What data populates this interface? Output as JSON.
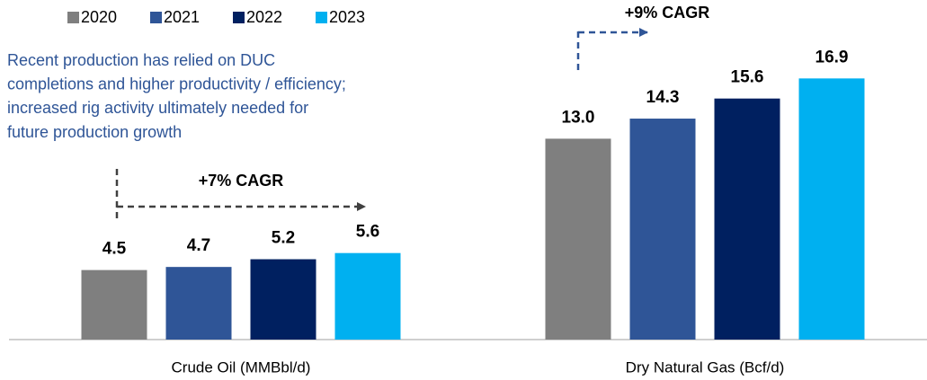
{
  "chart_data": {
    "type": "bar",
    "categories": [
      "Crude Oil (MMBbl/d)",
      "Dry Natural Gas (Bcf/d)"
    ],
    "series": [
      {
        "name": "2020",
        "color": "#7f7f7f",
        "values": [
          4.5,
          13.0
        ],
        "value_labels": [
          "4.5",
          "13.0"
        ]
      },
      {
        "name": "2021",
        "color": "#2f5597",
        "values": [
          4.7,
          14.3
        ],
        "value_labels": [
          "4.7",
          "14.3"
        ]
      },
      {
        "name": "2022",
        "color": "#002060",
        "values": [
          5.2,
          15.6
        ],
        "value_labels": [
          "5.2",
          "15.6"
        ]
      },
      {
        "name": "2023",
        "color": "#00b0f0",
        "values": [
          5.6,
          16.9
        ],
        "value_labels": [
          "5.6",
          "16.9"
        ]
      }
    ],
    "ylim": [
      0,
      20
    ],
    "legend": "top-left",
    "note": [
      "Recent production has relied on DUC",
      "completions and higher productivity / efficiency;",
      "increased rig activity ultimately needed for",
      "future production growth"
    ],
    "annotations": [
      "+7% CAGR",
      "+9% CAGR"
    ]
  }
}
